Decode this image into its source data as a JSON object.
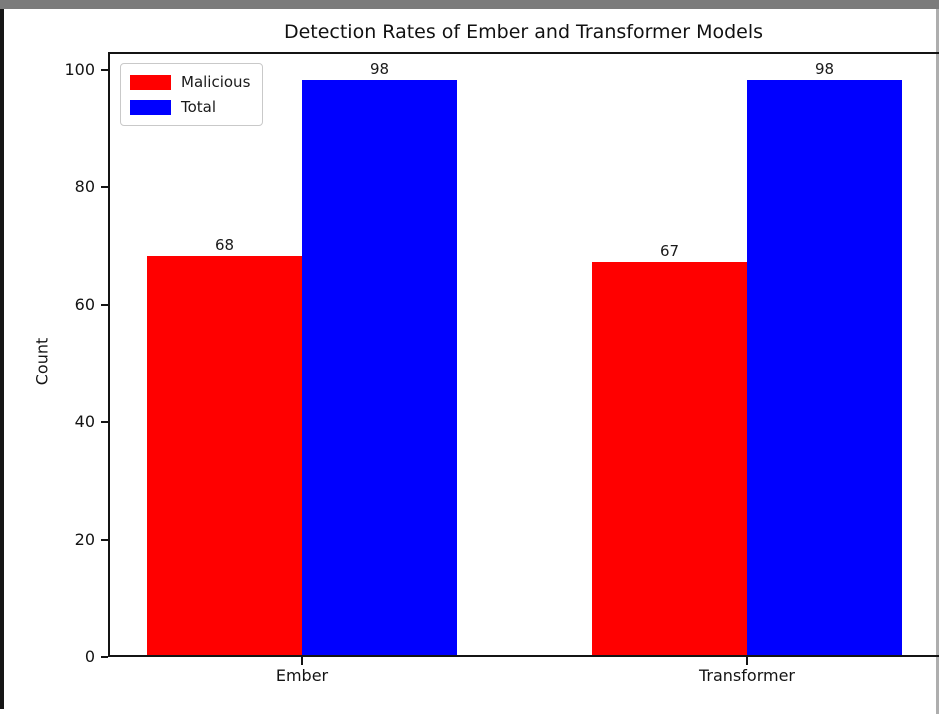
{
  "chart_data": {
    "type": "bar",
    "title": "Detection Rates of Ember and Transformer Models",
    "xlabel": "",
    "ylabel": "Count",
    "categories": [
      "Ember",
      "Transformer"
    ],
    "series": [
      {
        "name": "Malicious",
        "color": "#ff0000",
        "values": [
          68,
          67
        ]
      },
      {
        "name": "Total",
        "color": "#0000ff",
        "values": [
          98,
          98
        ]
      }
    ],
    "value_labels_shown": true,
    "yticks": [
      0,
      20,
      40,
      60,
      80,
      100
    ],
    "ylim": [
      0,
      103
    ],
    "grid": false,
    "legend": {
      "position": "upper left",
      "entries": [
        "Malicious",
        "Total"
      ]
    }
  }
}
